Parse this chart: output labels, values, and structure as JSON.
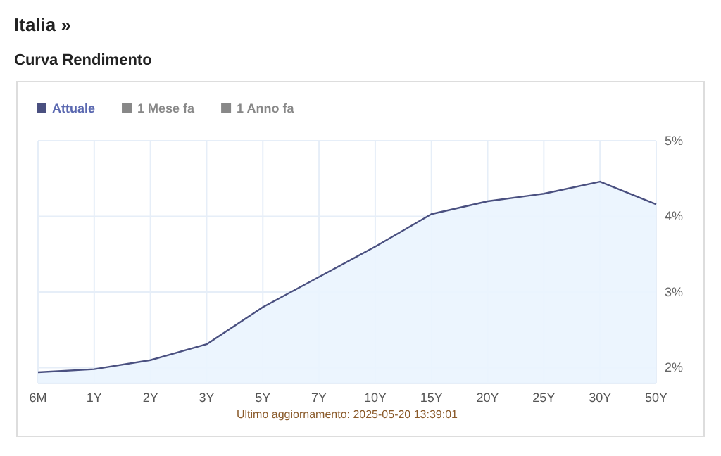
{
  "chart_data": {
    "type": "area",
    "title": "Italia »",
    "subtitle": "Curva Rendimento",
    "categories": [
      "6M",
      "1Y",
      "2Y",
      "3Y",
      "5Y",
      "7Y",
      "10Y",
      "15Y",
      "20Y",
      "25Y",
      "30Y",
      "50Y"
    ],
    "series": [
      {
        "name": "Attuale",
        "color": "#4a5080",
        "values": [
          1.94,
          1.98,
          2.1,
          2.31,
          2.8,
          3.2,
          3.6,
          4.03,
          4.2,
          4.3,
          4.46,
          4.16
        ]
      },
      {
        "name": "1 Mese fa",
        "color": "#888888",
        "values": [
          null,
          null,
          null,
          null,
          null,
          null,
          null,
          null,
          null,
          null,
          null,
          null
        ]
      },
      {
        "name": "1 Anno fa",
        "color": "#888888",
        "values": [
          null,
          null,
          null,
          null,
          null,
          null,
          null,
          null,
          null,
          null,
          null,
          null
        ]
      }
    ],
    "ylim": [
      1.8,
      5
    ],
    "yticks": [
      {
        "value": 2,
        "label": "2%"
      },
      {
        "value": 3,
        "label": "3%"
      },
      {
        "value": 4,
        "label": "4%"
      },
      {
        "value": 5,
        "label": "5%"
      }
    ],
    "grid": true,
    "legend": "top left",
    "annotations": [
      "Ultimo aggiornamento: 2025-05-20 13:39:01"
    ]
  }
}
